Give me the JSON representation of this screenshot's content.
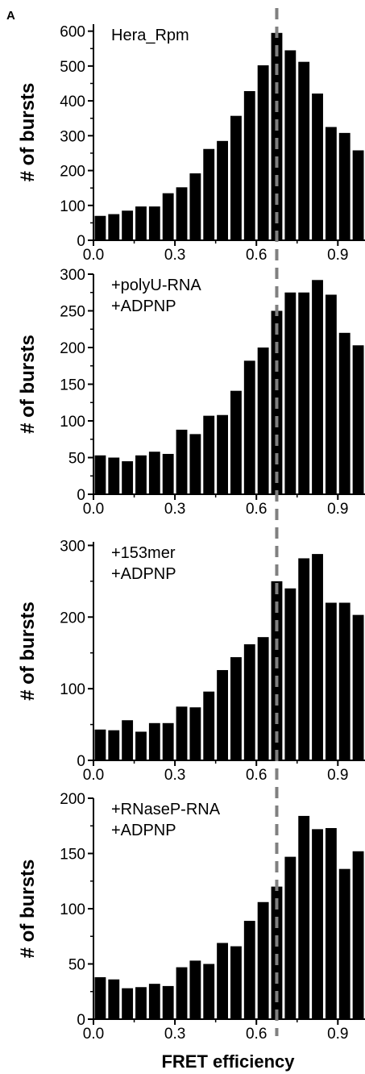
{
  "panel_letter": "A",
  "xlabel": "FRET efficiency",
  "colors": {
    "bar": "#000000",
    "guide": "#808080",
    "axis": "#000000"
  },
  "guide_line_x": 0.675,
  "chart_data": [
    {
      "type": "bar",
      "annotation": [
        "Hera_Rpm"
      ],
      "ylabel": "# of bursts",
      "xlim": [
        0.0,
        1.0
      ],
      "ylim": [
        0,
        620
      ],
      "xticks": [
        "0.0",
        "0.3",
        "0.6",
        "0.9"
      ],
      "yticks": [
        "0",
        "100",
        "200",
        "300",
        "400",
        "500",
        "600"
      ],
      "x": [
        0.025,
        0.075,
        0.125,
        0.175,
        0.225,
        0.275,
        0.325,
        0.375,
        0.425,
        0.475,
        0.525,
        0.575,
        0.625,
        0.675,
        0.725,
        0.775,
        0.825,
        0.875,
        0.925,
        0.975
      ],
      "values": [
        70,
        75,
        85,
        97,
        97,
        135,
        152,
        192,
        262,
        285,
        357,
        428,
        502,
        595,
        545,
        512,
        421,
        325,
        308,
        258
      ]
    },
    {
      "type": "bar",
      "annotation": [
        "+polyU-RNA",
        "+ADPNP"
      ],
      "ylabel": "# of bursts",
      "xlim": [
        0.0,
        1.0
      ],
      "ylim": [
        0,
        300
      ],
      "xticks": [
        "0.0",
        "0.3",
        "0.6",
        "0.9"
      ],
      "yticks": [
        "0",
        "50",
        "100",
        "150",
        "200",
        "250",
        "300"
      ],
      "x": [
        0.025,
        0.075,
        0.125,
        0.175,
        0.225,
        0.275,
        0.325,
        0.375,
        0.425,
        0.475,
        0.525,
        0.575,
        0.625,
        0.675,
        0.725,
        0.775,
        0.825,
        0.875,
        0.925,
        0.975
      ],
      "values": [
        53,
        50,
        45,
        53,
        58,
        55,
        88,
        82,
        107,
        108,
        141,
        182,
        200,
        250,
        275,
        275,
        292,
        272,
        220,
        203
      ]
    },
    {
      "type": "bar",
      "annotation": [
        "+153mer",
        "+ADPNP"
      ],
      "ylabel": "# of bursts",
      "xlim": [
        0.0,
        1.0
      ],
      "ylim": [
        0,
        305
      ],
      "xticks": [
        "0.0",
        "0.3",
        "0.6",
        "0.9"
      ],
      "yticks": [
        "0",
        "100",
        "200",
        "300"
      ],
      "x": [
        0.025,
        0.075,
        0.125,
        0.175,
        0.225,
        0.275,
        0.325,
        0.375,
        0.425,
        0.475,
        0.525,
        0.575,
        0.625,
        0.675,
        0.725,
        0.775,
        0.825,
        0.875,
        0.925,
        0.975
      ],
      "values": [
        43,
        42,
        56,
        40,
        52,
        52,
        75,
        74,
        96,
        126,
        144,
        162,
        172,
        250,
        240,
        282,
        288,
        220,
        220,
        203
      ]
    },
    {
      "type": "bar",
      "annotation": [
        "+RNaseP-RNA",
        "+ADPNP"
      ],
      "ylabel": "# of bursts",
      "xlim": [
        0.0,
        1.0
      ],
      "ylim": [
        0,
        200
      ],
      "xticks": [
        "0.0",
        "0.3",
        "0.6",
        "0.9"
      ],
      "yticks": [
        "0",
        "50",
        "100",
        "150",
        "200"
      ],
      "x": [
        0.025,
        0.075,
        0.125,
        0.175,
        0.225,
        0.275,
        0.325,
        0.375,
        0.425,
        0.475,
        0.525,
        0.575,
        0.625,
        0.675,
        0.725,
        0.775,
        0.825,
        0.875,
        0.925,
        0.975
      ],
      "values": [
        38,
        36,
        28,
        29,
        32,
        30,
        47,
        53,
        50,
        69,
        66,
        89,
        106,
        120,
        147,
        184,
        172,
        173,
        136,
        152
      ]
    }
  ]
}
